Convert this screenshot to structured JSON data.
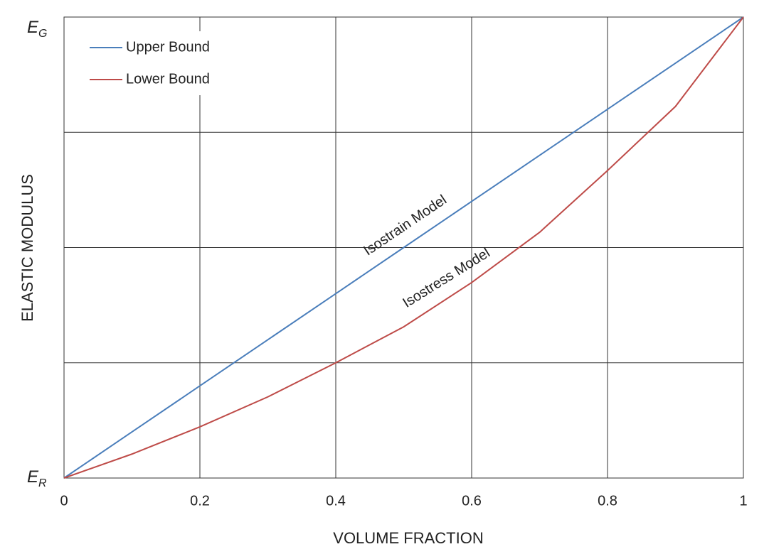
{
  "chart_data": {
    "type": "line",
    "x_label": "VOLUME FRACTION",
    "y_label": "ELASTIC MODULUS",
    "x": [
      0,
      0.1,
      0.2,
      0.3,
      0.4,
      0.5,
      0.6,
      0.7,
      0.8,
      0.9,
      1
    ],
    "series": [
      {
        "name": "Upper Bound",
        "color": "#4a7ebb",
        "values": [
          0,
          0.1,
          0.2,
          0.3,
          0.4,
          0.5,
          0.6,
          0.7,
          0.8,
          0.9,
          1
        ]
      },
      {
        "name": "Lower Bound",
        "color": "#be4b48",
        "values": [
          0,
          0.052,
          0.111,
          0.176,
          0.25,
          0.328,
          0.424,
          0.533,
          0.667,
          0.806,
          1
        ]
      }
    ],
    "xlim": [
      0,
      1
    ],
    "xticks": [
      0,
      0.2,
      0.4,
      0.6,
      0.8,
      1
    ],
    "ylim": [
      0,
      1
    ],
    "yticks": [
      {
        "value": 0,
        "label": "E",
        "subscript": "R"
      },
      {
        "value": 0.25,
        "label": null
      },
      {
        "value": 0.5,
        "label": null
      },
      {
        "value": 0.75,
        "label": null
      },
      {
        "value": 1,
        "label": "E",
        "subscript": "G"
      }
    ],
    "annotations": [
      {
        "text": "Isostrain Model",
        "series": 0
      },
      {
        "text": "Isostress Model",
        "series": 1
      }
    ],
    "grid": true,
    "legend": "upper left"
  }
}
